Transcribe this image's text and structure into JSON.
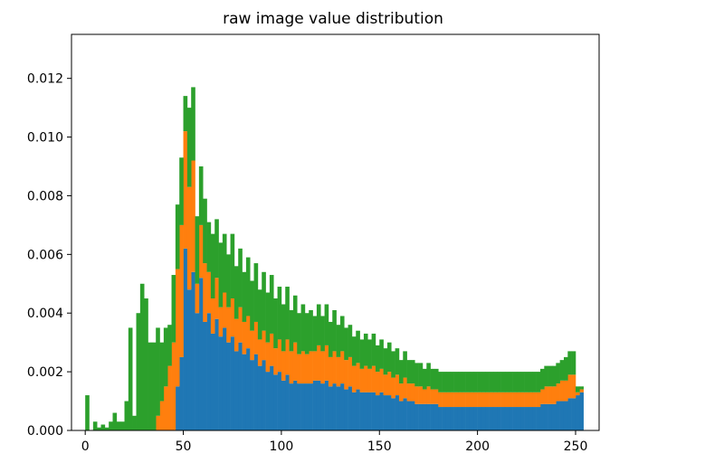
{
  "chart_data": {
    "type": "bar",
    "title": "raw image value distribution",
    "xlabel": "",
    "ylabel": "",
    "xlim": [
      -7,
      262
    ],
    "ylim": [
      0,
      0.0135
    ],
    "x_ticks": [
      "0",
      "50",
      "100",
      "150",
      "200",
      "250"
    ],
    "y_ticks": [
      "0.000",
      "0.002",
      "0.004",
      "0.006",
      "0.008",
      "0.010",
      "0.012"
    ],
    "bin_width": 2,
    "stacked": true,
    "grid": false,
    "legend": "none",
    "bin_starts": [
      0,
      2,
      4,
      6,
      8,
      10,
      12,
      14,
      16,
      18,
      20,
      22,
      24,
      26,
      28,
      30,
      32,
      34,
      36,
      38,
      40,
      42,
      44,
      46,
      48,
      50,
      52,
      54,
      56,
      58,
      60,
      62,
      64,
      66,
      68,
      70,
      72,
      74,
      76,
      78,
      80,
      82,
      84,
      86,
      88,
      90,
      92,
      94,
      96,
      98,
      100,
      102,
      104,
      106,
      108,
      110,
      112,
      114,
      116,
      118,
      120,
      122,
      124,
      126,
      128,
      130,
      132,
      134,
      136,
      138,
      140,
      142,
      144,
      146,
      148,
      150,
      152,
      154,
      156,
      158,
      160,
      162,
      164,
      166,
      168,
      170,
      172,
      174,
      176,
      178,
      180,
      182,
      184,
      186,
      188,
      190,
      192,
      194,
      196,
      198,
      200,
      202,
      204,
      206,
      208,
      210,
      212,
      214,
      216,
      218,
      220,
      222,
      224,
      226,
      228,
      230,
      232,
      234,
      236,
      238,
      240,
      242,
      244,
      246,
      248,
      250,
      252
    ],
    "series": [
      {
        "color": "#1f77b4",
        "values": [
          0,
          0,
          0,
          0,
          0,
          0,
          0,
          0,
          0,
          0,
          0,
          0,
          0,
          0,
          0,
          0,
          0,
          0,
          0,
          0,
          0,
          0,
          0,
          0.0015,
          0.0025,
          0.0062,
          0.0048,
          0.0054,
          0.004,
          0.0052,
          0.0037,
          0.004,
          0.0033,
          0.0038,
          0.0032,
          0.0035,
          0.003,
          0.0032,
          0.0027,
          0.003,
          0.0026,
          0.0028,
          0.0024,
          0.0026,
          0.0022,
          0.0024,
          0.002,
          0.0022,
          0.0019,
          0.002,
          0.0017,
          0.0019,
          0.0016,
          0.0017,
          0.0016,
          0.0016,
          0.0016,
          0.0016,
          0.0017,
          0.0017,
          0.0016,
          0.0017,
          0.0015,
          0.0016,
          0.0015,
          0.0016,
          0.0014,
          0.0015,
          0.0013,
          0.0014,
          0.0013,
          0.0013,
          0.0013,
          0.0013,
          0.0012,
          0.0013,
          0.0012,
          0.0012,
          0.0011,
          0.0012,
          0.001,
          0.0011,
          0.001,
          0.001,
          0.0009,
          0.0009,
          0.0009,
          0.0009,
          0.0009,
          0.0009,
          0.0008,
          0.0008,
          0.0008,
          0.0008,
          0.0008,
          0.0008,
          0.0008,
          0.0008,
          0.0008,
          0.0008,
          0.0008,
          0.0008,
          0.0008,
          0.0008,
          0.0008,
          0.0008,
          0.0008,
          0.0008,
          0.0008,
          0.0008,
          0.0008,
          0.0008,
          0.0008,
          0.0008,
          0.0008,
          0.0008,
          0.0009,
          0.0009,
          0.0009,
          0.0009,
          0.001,
          0.001,
          0.001,
          0.0011,
          0.0011,
          0.0012,
          0.0013,
          0.0015,
          0.0015,
          0.0014,
          0.0001,
          0
        ]
      },
      {
        "color": "#ff7f0e",
        "values": [
          0,
          0,
          0,
          0,
          0,
          0,
          0,
          0,
          0,
          0,
          0,
          0,
          0,
          0,
          0,
          0,
          0,
          0,
          0.0005,
          0.001,
          0.0015,
          0.0022,
          0.003,
          0.004,
          0.0045,
          0.004,
          0.0035,
          0.0038,
          0.001,
          0.0018,
          0.002,
          0.0014,
          0.0012,
          0.0014,
          0.001,
          0.0012,
          0.0012,
          0.0013,
          0.0011,
          0.0012,
          0.0011,
          0.0011,
          0.001,
          0.0011,
          0.0009,
          0.001,
          0.001,
          0.0011,
          0.0009,
          0.0011,
          0.001,
          0.0012,
          0.0011,
          0.0013,
          0.001,
          0.0011,
          0.001,
          0.0011,
          0.001,
          0.0012,
          0.0011,
          0.0012,
          0.001,
          0.0011,
          0.001,
          0.0011,
          0.001,
          0.001,
          0.0009,
          0.0009,
          0.0008,
          0.0009,
          0.0008,
          0.0009,
          0.0008,
          0.0008,
          0.0007,
          0.0008,
          0.0007,
          0.0007,
          0.0006,
          0.0007,
          0.0006,
          0.0006,
          0.0006,
          0.0006,
          0.0005,
          0.0006,
          0.0005,
          0.0005,
          0.0005,
          0.0005,
          0.0005,
          0.0005,
          0.0005,
          0.0005,
          0.0005,
          0.0005,
          0.0005,
          0.0005,
          0.0005,
          0.0005,
          0.0005,
          0.0005,
          0.0005,
          0.0005,
          0.0005,
          0.0005,
          0.0005,
          0.0005,
          0.0005,
          0.0005,
          0.0005,
          0.0005,
          0.0005,
          0.0005,
          0.0005,
          0.0006,
          0.0006,
          0.0006,
          0.0006,
          0.0007,
          0.0007,
          0.0008,
          0.0008,
          0.0001,
          0.0001,
          0
        ]
      },
      {
        "color": "#2ca02c",
        "values": [
          0.0012,
          0,
          0.0003,
          0.0001,
          0.0002,
          0.0001,
          0.0003,
          0.0006,
          0.0003,
          0.0003,
          0.001,
          0.0035,
          0.0005,
          0.004,
          0.005,
          0.0045,
          0.003,
          0.003,
          0.003,
          0.002,
          0.002,
          0.0014,
          0.0023,
          0.0022,
          0.0023,
          0.0012,
          0.0027,
          0.0025,
          0.0023,
          0.002,
          0.0022,
          0.0017,
          0.0022,
          0.002,
          0.0022,
          0.002,
          0.0018,
          0.0022,
          0.0018,
          0.002,
          0.0017,
          0.002,
          0.0017,
          0.002,
          0.0017,
          0.002,
          0.0017,
          0.002,
          0.0017,
          0.0018,
          0.0016,
          0.0018,
          0.0014,
          0.0016,
          0.0014,
          0.0016,
          0.0014,
          0.0014,
          0.0012,
          0.0014,
          0.0012,
          0.0014,
          0.0012,
          0.0014,
          0.0011,
          0.0012,
          0.0011,
          0.0011,
          0.001,
          0.0011,
          0.001,
          0.0011,
          0.001,
          0.0011,
          0.0009,
          0.001,
          0.0009,
          0.001,
          0.0009,
          0.0009,
          0.0008,
          0.0009,
          0.0008,
          0.0008,
          0.0008,
          0.0008,
          0.0007,
          0.0008,
          0.0007,
          0.0007,
          0.0007,
          0.0007,
          0.0007,
          0.0007,
          0.0007,
          0.0007,
          0.0007,
          0.0007,
          0.0007,
          0.0007,
          0.0007,
          0.0007,
          0.0007,
          0.0007,
          0.0007,
          0.0007,
          0.0007,
          0.0007,
          0.0007,
          0.0007,
          0.0007,
          0.0007,
          0.0007,
          0.0007,
          0.0007,
          0.0007,
          0.0007,
          0.0007,
          0.0007,
          0.0007,
          0.0007,
          0.0007,
          0.0008,
          0.0008,
          0.0008,
          0.0002,
          0.0001,
          0
        ]
      }
    ]
  }
}
